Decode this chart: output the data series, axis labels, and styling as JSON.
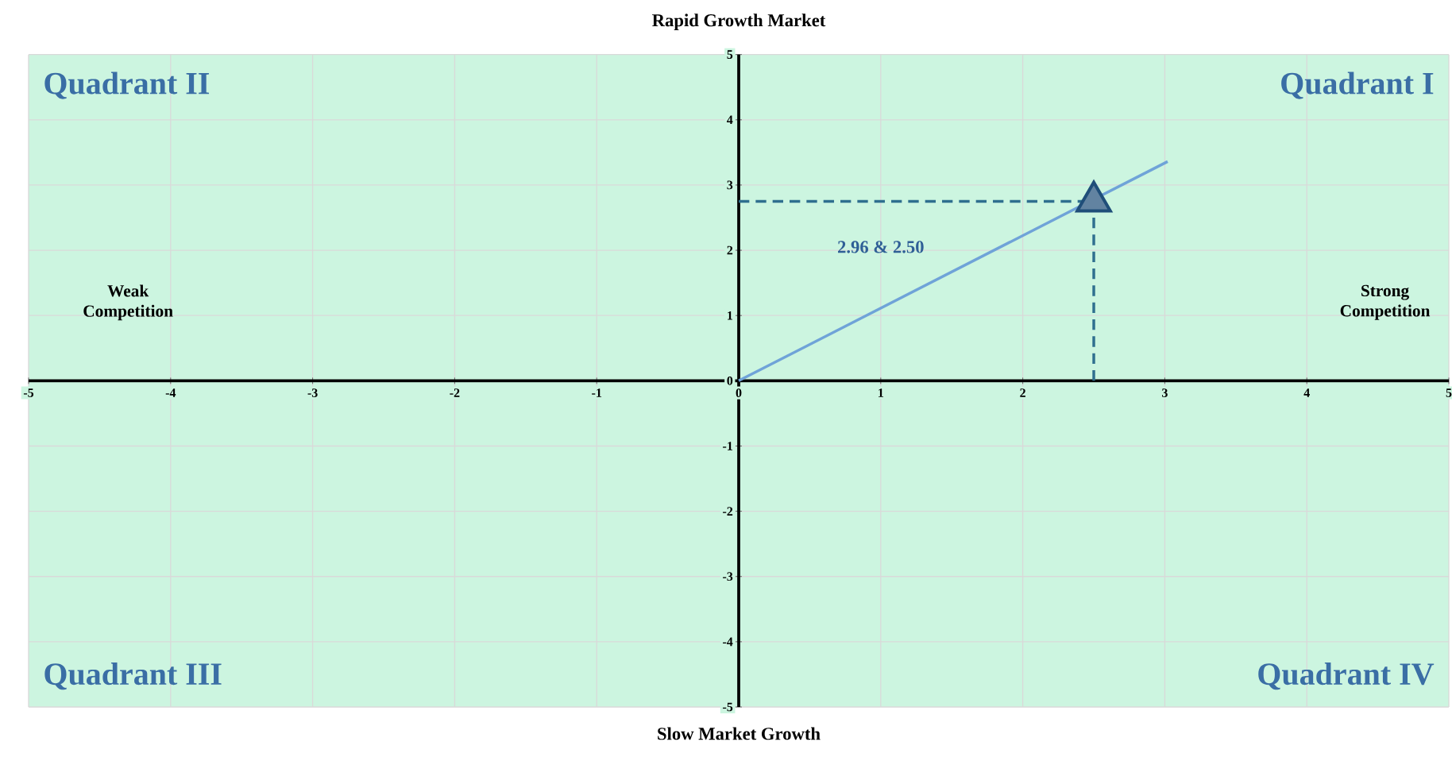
{
  "chart_data": {
    "type": "scatter",
    "title": "Rapid Growth Market",
    "xlabel": "Slow Market Growth",
    "xlim": [
      -5,
      5
    ],
    "ylim": [
      -5,
      5
    ],
    "xticks": [
      -5,
      -4,
      -3,
      -2,
      -1,
      0,
      1,
      2,
      3,
      4,
      5
    ],
    "yticks": [
      -5,
      -4,
      -3,
      -2,
      -1,
      0,
      1,
      2,
      3,
      4,
      5
    ],
    "grid": true,
    "series": [
      {
        "type": "line",
        "color": "#6fa3d8",
        "x": [
          0,
          3.02
        ],
        "values": [
          0,
          3.36
        ],
        "line_style": "solid"
      },
      {
        "type": "line",
        "color": "#2f6f8f",
        "x": [
          0,
          2.5
        ],
        "values": [
          2.75,
          2.75
        ],
        "line_style": "dashed"
      },
      {
        "type": "line",
        "color": "#2f6f8f",
        "x": [
          2.5,
          2.5
        ],
        "values": [
          0,
          2.75
        ],
        "line_style": "dashed"
      },
      {
        "color": "#1f4e79",
        "x": [
          2.5
        ],
        "values": [
          2.75
        ],
        "marker": "triangle"
      }
    ],
    "annotations": [
      "Quadrant II",
      "Quadrant I",
      "Quadrant III",
      "Quadrant IV",
      "Weak Competition",
      "Strong Competition",
      "2.96 & 2.50"
    ]
  }
}
